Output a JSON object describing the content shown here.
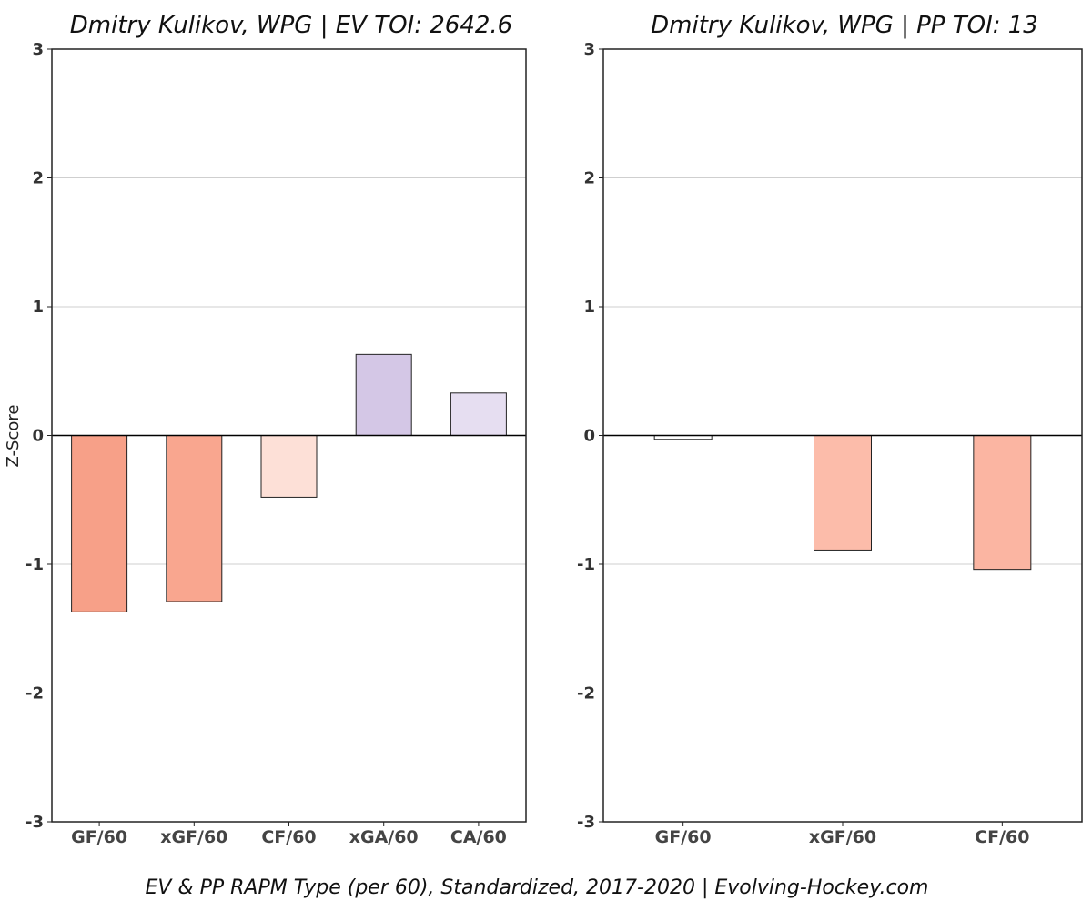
{
  "caption": "EV & PP RAPM Type (per 60), Standardized, 2017-2020    |    Evolving-Hockey.com",
  "chart_data": [
    {
      "type": "bar",
      "title": "Dmitry Kulikov, WPG  |  EV TOI: 2642.6",
      "ylabel": "Z-Score",
      "xlabel": "",
      "ylim": [
        -3,
        3
      ],
      "yticks": [
        3,
        2,
        1,
        0,
        -1,
        -2,
        -3
      ],
      "grid": true,
      "categories": [
        "GF/60",
        "xGF/60",
        "CF/60",
        "xGA/60",
        "CA/60"
      ],
      "values": [
        -1.37,
        -1.29,
        -0.48,
        0.63,
        0.33
      ],
      "colors": [
        "#f7a088",
        "#f9a68f",
        "#fde0d7",
        "#d4c7e6",
        "#e6def1"
      ]
    },
    {
      "type": "bar",
      "title": "Dmitry Kulikov, WPG  |  PP TOI: 13",
      "ylabel": "",
      "xlabel": "",
      "ylim": [
        -3,
        3
      ],
      "yticks": [
        3,
        2,
        1,
        0,
        -1,
        -2,
        -3
      ],
      "grid": true,
      "categories": [
        "GF/60",
        "xGF/60",
        "CF/60"
      ],
      "values": [
        -0.03,
        -0.89,
        -1.04
      ],
      "colors": [
        "#ffffff",
        "#fcbcaa",
        "#fbb5a2"
      ]
    }
  ]
}
